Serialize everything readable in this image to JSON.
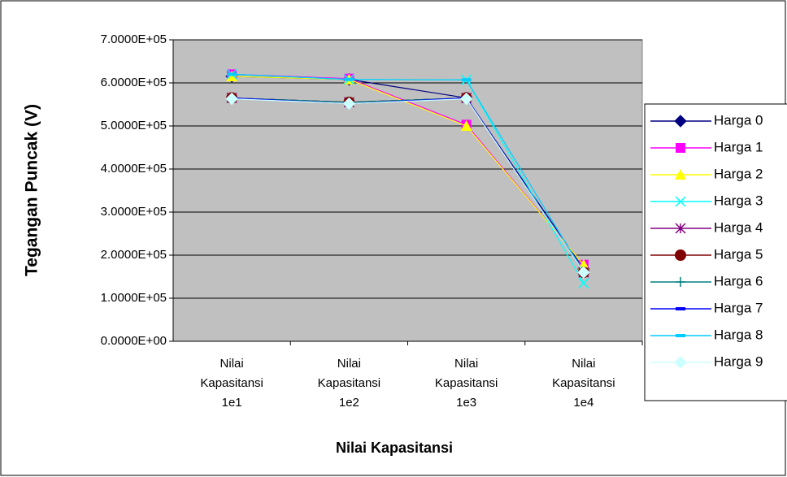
{
  "chart_data": {
    "type": "line",
    "xlabel": "Nilai Kapasitansi",
    "ylabel": "Tegangan Puncak (V)",
    "categories": [
      "Nilai Kapasitansi 1e1",
      "Nilai Kapasitansi 1e2",
      "Nilai Kapasitansi 1e3",
      "Nilai Kapasitansi 1e4"
    ],
    "ylim": [
      0,
      700000
    ],
    "yticks": [
      {
        "value": 0,
        "label": "0.0000E+00"
      },
      {
        "value": 100000,
        "label": "1.0000E+05"
      },
      {
        "value": 200000,
        "label": "2.0000E+05"
      },
      {
        "value": 300000,
        "label": "3.0000E+05"
      },
      {
        "value": 400000,
        "label": "4.0000E+05"
      },
      {
        "value": 500000,
        "label": "5.0000E+05"
      },
      {
        "value": 600000,
        "label": "6.0000E+05"
      },
      {
        "value": 700000,
        "label": "7.0000E+05"
      }
    ],
    "grid": true,
    "legend": "right",
    "series": [
      {
        "name": "Harga 0",
        "color": "#000080",
        "marker": "diamond",
        "values": [
          615000,
          608000,
          565000,
          168000
        ]
      },
      {
        "name": "Harga 1",
        "color": "#ff00ff",
        "marker": "square",
        "values": [
          620000,
          610000,
          503000,
          178000
        ]
      },
      {
        "name": "Harga 2",
        "color": "#ffff00",
        "marker": "triangle",
        "values": [
          615000,
          608000,
          500000,
          178000
        ]
      },
      {
        "name": "Harga 3",
        "color": "#00ffff",
        "marker": "x",
        "values": [
          620000,
          608000,
          607000,
          135000
        ]
      },
      {
        "name": "Harga 4",
        "color": "#800080",
        "marker": "star",
        "values": [
          565000,
          555000,
          565000,
          160000
        ]
      },
      {
        "name": "Harga 5",
        "color": "#800000",
        "marker": "circle",
        "values": [
          565000,
          555000,
          565000,
          160000
        ]
      },
      {
        "name": "Harga 6",
        "color": "#008080",
        "marker": "plus",
        "values": [
          565000,
          555000,
          565000,
          160000
        ]
      },
      {
        "name": "Harga 7",
        "color": "#0000ff",
        "marker": "dash",
        "values": [
          565000,
          552000,
          565000,
          160000
        ]
      },
      {
        "name": "Harga 8",
        "color": "#00ccff",
        "marker": "dash",
        "values": [
          620000,
          608000,
          607000,
          160000
        ]
      },
      {
        "name": "Harga 9",
        "color": "#ccffff",
        "marker": "diamond",
        "values": [
          563000,
          552000,
          563000,
          160000
        ]
      }
    ]
  }
}
